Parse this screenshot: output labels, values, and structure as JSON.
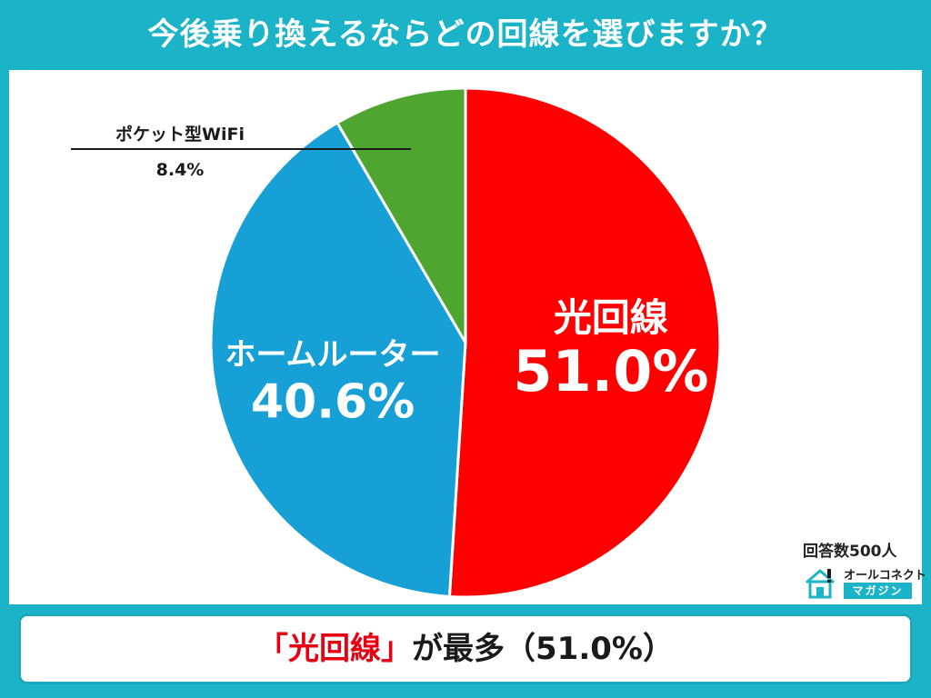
{
  "title": "今後乗り換えるならどの回線を選びますか？",
  "respondents": "回答数500人",
  "brand": {
    "name": "オールコネクト",
    "sub": "マガジン"
  },
  "conclusion": {
    "highlight": "「光回線」",
    "rest": "が最多（51.0%）"
  },
  "chart_data": {
    "type": "pie",
    "unit": "%",
    "slices": [
      {
        "label": "光回線",
        "value": 51.0,
        "display": "51.0%",
        "color": "#fe0000"
      },
      {
        "label": "ホームルーター",
        "value": 40.6,
        "display": "40.6%",
        "color": "#16a0d6"
      },
      {
        "label": "ポケット型WiFi",
        "value": 8.4,
        "display": "8.4%",
        "color": "#4ea52f"
      }
    ]
  }
}
